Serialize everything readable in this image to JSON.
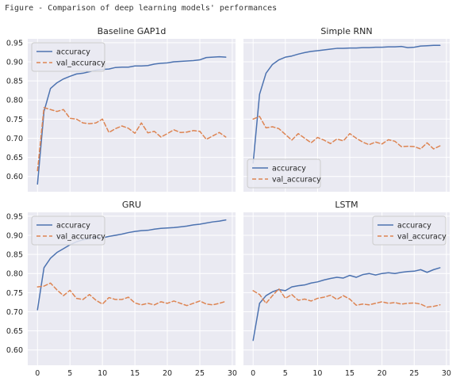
{
  "figure_caption": "Figure - Comparison of deep learning models' performances",
  "colors": {
    "accuracy": "#4c72b0",
    "val_accuracy": "#dd8452"
  },
  "chart_data": [
    {
      "type": "line",
      "title": "Baseline GAP1d",
      "ylim": [
        0.56,
        0.96
      ],
      "xlim": [
        -1.5,
        30.5
      ],
      "yticks": [
        0.6,
        0.65,
        0.7,
        0.75,
        0.8,
        0.85,
        0.9,
        0.95
      ],
      "xticks": [
        0,
        5,
        10,
        15,
        20,
        25,
        30
      ],
      "show_xticklabels": false,
      "show_yticklabels": true,
      "legend": "top-left",
      "x": [
        0,
        1,
        2,
        3,
        4,
        5,
        6,
        7,
        8,
        9,
        10,
        11,
        12,
        13,
        14,
        15,
        16,
        17,
        18,
        19,
        20,
        21,
        22,
        23,
        24,
        25,
        26,
        27,
        28,
        29
      ],
      "series": [
        {
          "name": "accuracy",
          "style": "solid",
          "values": [
            0.58,
            0.77,
            0.83,
            0.845,
            0.855,
            0.862,
            0.868,
            0.87,
            0.874,
            0.878,
            0.88,
            0.881,
            0.885,
            0.886,
            0.886,
            0.889,
            0.889,
            0.89,
            0.894,
            0.896,
            0.897,
            0.9,
            0.901,
            0.902,
            0.903,
            0.905,
            0.911,
            0.912,
            0.913,
            0.912
          ]
        },
        {
          "name": "val_accuracy",
          "style": "dashed",
          "values": [
            0.615,
            0.78,
            0.775,
            0.77,
            0.775,
            0.752,
            0.75,
            0.74,
            0.738,
            0.74,
            0.75,
            0.715,
            0.725,
            0.732,
            0.726,
            0.713,
            0.74,
            0.714,
            0.718,
            0.703,
            0.712,
            0.722,
            0.715,
            0.716,
            0.72,
            0.718,
            0.697,
            0.706,
            0.715,
            0.703
          ]
        }
      ]
    },
    {
      "type": "line",
      "title": "Simple RNN",
      "ylim": [
        0.56,
        0.96
      ],
      "xlim": [
        -1.5,
        30.5
      ],
      "yticks": [
        0.6,
        0.65,
        0.7,
        0.75,
        0.8,
        0.85,
        0.9,
        0.95
      ],
      "xticks": [
        0,
        5,
        10,
        15,
        20,
        25,
        30
      ],
      "show_xticklabels": false,
      "show_yticklabels": false,
      "legend": "bottom-left",
      "x": [
        0,
        1,
        2,
        3,
        4,
        5,
        6,
        7,
        8,
        9,
        10,
        11,
        12,
        13,
        14,
        15,
        16,
        17,
        18,
        19,
        20,
        21,
        22,
        23,
        24,
        25,
        26,
        27,
        28,
        29
      ],
      "series": [
        {
          "name": "accuracy",
          "style": "solid",
          "values": [
            0.635,
            0.815,
            0.87,
            0.893,
            0.905,
            0.912,
            0.915,
            0.92,
            0.924,
            0.927,
            0.929,
            0.931,
            0.933,
            0.935,
            0.935,
            0.936,
            0.936,
            0.937,
            0.937,
            0.938,
            0.938,
            0.939,
            0.939,
            0.94,
            0.937,
            0.938,
            0.941,
            0.942,
            0.943,
            0.943
          ]
        },
        {
          "name": "val_accuracy",
          "style": "dashed",
          "values": [
            0.75,
            0.757,
            0.727,
            0.73,
            0.725,
            0.71,
            0.695,
            0.712,
            0.7,
            0.688,
            0.702,
            0.695,
            0.686,
            0.698,
            0.693,
            0.712,
            0.7,
            0.69,
            0.683,
            0.69,
            0.685,
            0.696,
            0.692,
            0.678,
            0.679,
            0.678,
            0.672,
            0.688,
            0.672,
            0.68
          ]
        }
      ]
    },
    {
      "type": "line",
      "title": "GRU",
      "ylim": [
        0.56,
        0.96
      ],
      "xlim": [
        -1.5,
        30.5
      ],
      "yticks": [
        0.6,
        0.65,
        0.7,
        0.75,
        0.8,
        0.85,
        0.9,
        0.95
      ],
      "xticks": [
        0,
        5,
        10,
        15,
        20,
        25,
        30
      ],
      "show_xticklabels": true,
      "show_yticklabels": true,
      "legend": "top-left",
      "x": [
        0,
        1,
        2,
        3,
        4,
        5,
        6,
        7,
        8,
        9,
        10,
        11,
        12,
        13,
        14,
        15,
        16,
        17,
        18,
        19,
        20,
        21,
        22,
        23,
        24,
        25,
        26,
        27,
        28,
        29
      ],
      "series": [
        {
          "name": "accuracy",
          "style": "solid",
          "values": [
            0.705,
            0.815,
            0.84,
            0.855,
            0.865,
            0.875,
            0.883,
            0.888,
            0.892,
            0.895,
            0.893,
            0.897,
            0.9,
            0.903,
            0.907,
            0.91,
            0.912,
            0.913,
            0.916,
            0.918,
            0.919,
            0.92,
            0.922,
            0.924,
            0.927,
            0.929,
            0.932,
            0.935,
            0.937,
            0.94
          ]
        },
        {
          "name": "val_accuracy",
          "style": "dashed",
          "values": [
            0.765,
            0.767,
            0.775,
            0.757,
            0.742,
            0.756,
            0.735,
            0.732,
            0.745,
            0.73,
            0.72,
            0.737,
            0.732,
            0.732,
            0.738,
            0.723,
            0.718,
            0.722,
            0.718,
            0.726,
            0.722,
            0.728,
            0.722,
            0.716,
            0.722,
            0.728,
            0.72,
            0.718,
            0.722,
            0.727
          ]
        }
      ]
    },
    {
      "type": "line",
      "title": "LSTM",
      "ylim": [
        0.56,
        0.96
      ],
      "xlim": [
        -1.5,
        30.5
      ],
      "yticks": [
        0.6,
        0.65,
        0.7,
        0.75,
        0.8,
        0.85,
        0.9,
        0.95
      ],
      "xticks": [
        0,
        5,
        10,
        15,
        20,
        25,
        30
      ],
      "show_xticklabels": true,
      "show_yticklabels": false,
      "legend": "top-right",
      "x": [
        0,
        1,
        2,
        3,
        4,
        5,
        6,
        7,
        8,
        9,
        10,
        11,
        12,
        13,
        14,
        15,
        16,
        17,
        18,
        19,
        20,
        21,
        22,
        23,
        24,
        25,
        26,
        27,
        28,
        29
      ],
      "series": [
        {
          "name": "accuracy",
          "style": "solid",
          "values": [
            0.625,
            0.722,
            0.742,
            0.752,
            0.758,
            0.755,
            0.765,
            0.768,
            0.77,
            0.775,
            0.778,
            0.783,
            0.787,
            0.79,
            0.788,
            0.795,
            0.79,
            0.797,
            0.8,
            0.796,
            0.8,
            0.802,
            0.8,
            0.803,
            0.805,
            0.806,
            0.81,
            0.803,
            0.81,
            0.815
          ]
        },
        {
          "name": "val_accuracy",
          "style": "dashed",
          "values": [
            0.755,
            0.745,
            0.722,
            0.742,
            0.76,
            0.735,
            0.745,
            0.73,
            0.733,
            0.728,
            0.735,
            0.738,
            0.743,
            0.732,
            0.742,
            0.733,
            0.717,
            0.72,
            0.718,
            0.722,
            0.726,
            0.722,
            0.724,
            0.72,
            0.722,
            0.723,
            0.72,
            0.712,
            0.714,
            0.718
          ]
        }
      ]
    }
  ]
}
